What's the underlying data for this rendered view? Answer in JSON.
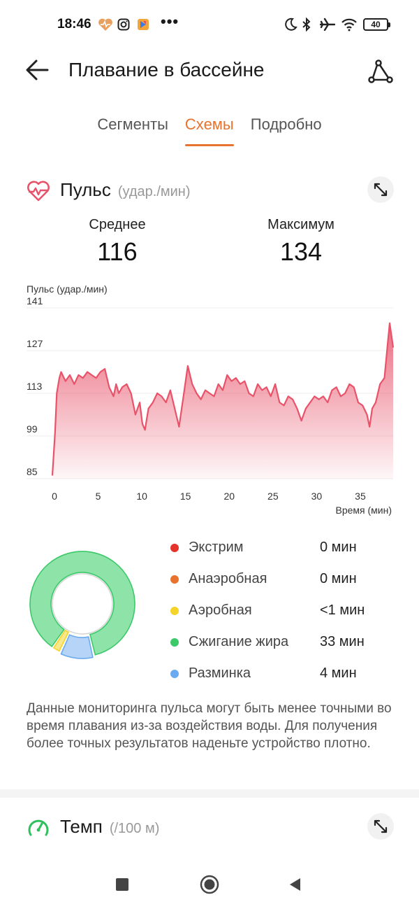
{
  "status_bar": {
    "time": "18:46",
    "dots": "•••",
    "battery": "40",
    "icons": [
      "heart-health-icon",
      "instagram-icon",
      "app-icon",
      "moon-icon",
      "bluetooth-icon",
      "airplane-icon",
      "wifi-icon"
    ]
  },
  "header": {
    "title": "Плавание в бассейне",
    "back_icon": "back-arrow-icon",
    "route_icon": "route-icon"
  },
  "tabs": [
    {
      "label": "Сегменты",
      "active": false
    },
    {
      "label": "Схемы",
      "active": true
    },
    {
      "label": "Подробно",
      "active": false
    }
  ],
  "pulse": {
    "title": "Пульс",
    "unit": "(удар./мин)",
    "avg_label": "Среднее",
    "avg_value": "116",
    "max_label": "Максимум",
    "max_value": "134"
  },
  "chart_data": {
    "type": "area",
    "ylabel": "Пульс (удар./мин)",
    "xlabel": "Время (мин)",
    "yticks": [
      "141",
      "127",
      "113",
      "99",
      "85"
    ],
    "xticks": [
      "0",
      "5",
      "10",
      "15",
      "20",
      "25",
      "30",
      "35"
    ],
    "ylim": [
      85,
      141
    ],
    "xlim": [
      0,
      39
    ],
    "color": "#e8536a",
    "x": [
      0,
      0.3,
      0.5,
      0.8,
      1,
      1.5,
      2,
      2.5,
      3,
      3.5,
      4,
      4.5,
      5,
      5.5,
      6,
      6.5,
      7,
      7.3,
      7.6,
      8,
      8.5,
      9,
      9.5,
      10,
      10.3,
      10.6,
      11,
      11.5,
      12,
      12.5,
      13,
      13.5,
      14,
      14.5,
      15,
      15.5,
      16,
      16.5,
      17,
      17.5,
      18,
      18.5,
      19,
      19.5,
      20,
      20.5,
      21,
      21.5,
      22,
      22.5,
      23,
      23.5,
      24,
      24.5,
      25,
      25.5,
      26,
      26.5,
      27,
      27.5,
      28,
      28.5,
      29,
      29.5,
      30,
      30.5,
      31,
      31.5,
      32,
      32.5,
      33,
      33.5,
      34,
      34.5,
      35,
      35.5,
      36,
      36.3,
      36.6,
      37,
      37.5,
      38,
      38.3,
      38.6,
      39
    ],
    "y": [
      86,
      100,
      113,
      118,
      120,
      117,
      119,
      116,
      119,
      118,
      120,
      119,
      118,
      120,
      121,
      115,
      112,
      116,
      113,
      115,
      116,
      113,
      106,
      110,
      103,
      101,
      108,
      110,
      113,
      112,
      110,
      114,
      108,
      102,
      112,
      122,
      116,
      113,
      111,
      114,
      113,
      112,
      116,
      114,
      119,
      117,
      118,
      116,
      117,
      113,
      112,
      116,
      114,
      115,
      112,
      116,
      110,
      109,
      112,
      111,
      108,
      104,
      108,
      110,
      112,
      111,
      112,
      110,
      114,
      115,
      112,
      113,
      116,
      115,
      110,
      109,
      106,
      102,
      108,
      110,
      116,
      118,
      127,
      136,
      128
    ],
    "grid": true
  },
  "zones": [
    {
      "name": "Экстрим",
      "value": "0 мин",
      "color": "#e5322b"
    },
    {
      "name": "Анаэробная",
      "value": "0 мин",
      "color": "#e8732e"
    },
    {
      "name": "Аэробная",
      "value": "<1 мин",
      "color": "#f5d42a"
    },
    {
      "name": "Сжигание жира",
      "value": "33 мин",
      "color": "#3cc96a"
    },
    {
      "name": "Разминка",
      "value": "4 мин",
      "color": "#6aaaee"
    }
  ],
  "donut_data": {
    "type": "pie",
    "values": [
      0,
      0,
      1,
      33,
      4
    ],
    "colors": [
      "#e5322b",
      "#e8732e",
      "#f7e88a",
      "#8ee3a8",
      "#b5d4f7"
    ]
  },
  "note": "Данные мониторинга пульса могут быть менее точными во время плавания из-за воздействия воды. Для получения более точных результатов наденьте устройство плотно.",
  "pace": {
    "title": "Темп",
    "unit": "(/100 м)"
  },
  "nav": {
    "recent_icon": "square-recent-icon",
    "home_icon": "circle-home-icon",
    "back_icon": "triangle-back-icon"
  }
}
